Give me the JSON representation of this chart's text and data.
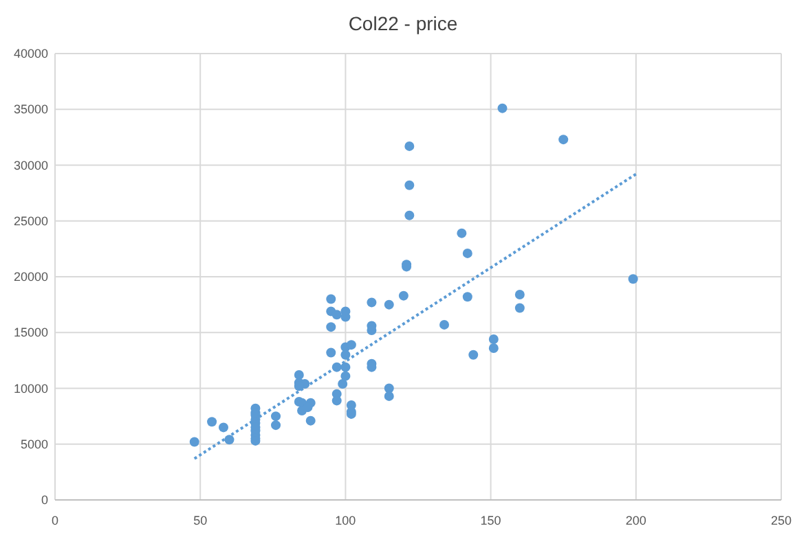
{
  "chart_data": {
    "type": "scatter",
    "title": "Col22 - price",
    "xlim": [
      0,
      250
    ],
    "ylim": [
      0,
      40000
    ],
    "xticks": [
      0,
      50,
      100,
      150,
      200,
      250
    ],
    "yticks": [
      0,
      5000,
      10000,
      15000,
      20000,
      25000,
      30000,
      35000,
      40000
    ],
    "grid": true,
    "marker": "circle",
    "series": [
      {
        "color": "#5b9bd5",
        "x": [
          48,
          54,
          58,
          60,
          69,
          69,
          69,
          69,
          69,
          69,
          69,
          69,
          69,
          69,
          76,
          76,
          84,
          84,
          86,
          84,
          84,
          85,
          88,
          85,
          88,
          87,
          95,
          95,
          97,
          95,
          95,
          97,
          97,
          97,
          100,
          100,
          100,
          102,
          100,
          100,
          100,
          99,
          102,
          102,
          102,
          109,
          109,
          109,
          109,
          109,
          115,
          115,
          115,
          120,
          121,
          121,
          122,
          122,
          122,
          140,
          142,
          154,
          175,
          199,
          160,
          160,
          142,
          134,
          144,
          151,
          151
        ],
        "values": [
          5200,
          7000,
          6500,
          5400,
          8200,
          7800,
          7600,
          7200,
          6900,
          6500,
          6200,
          5800,
          5500,
          5300,
          7500,
          6700,
          11200,
          10500,
          10400,
          10200,
          8800,
          8700,
          8700,
          8000,
          7100,
          8300,
          18000,
          16900,
          16600,
          15500,
          13200,
          11900,
          9500,
          8900,
          16900,
          16400,
          13700,
          13900,
          13000,
          11900,
          11100,
          10400,
          8500,
          7900,
          7700,
          17700,
          15600,
          15200,
          12200,
          11900,
          17500,
          10000,
          9300,
          18300,
          21100,
          20900,
          31700,
          28200,
          25500,
          23900,
          22100,
          35100,
          32300,
          19800,
          18400,
          17200,
          18200,
          15700,
          13000,
          14400,
          13600
        ]
      },
      {
        "type": "line",
        "color": "#5b9bd5",
        "line_style": "dotted",
        "marker": "none",
        "x": [
          48,
          200
        ],
        "values": [
          3700,
          29200
        ]
      }
    ]
  }
}
